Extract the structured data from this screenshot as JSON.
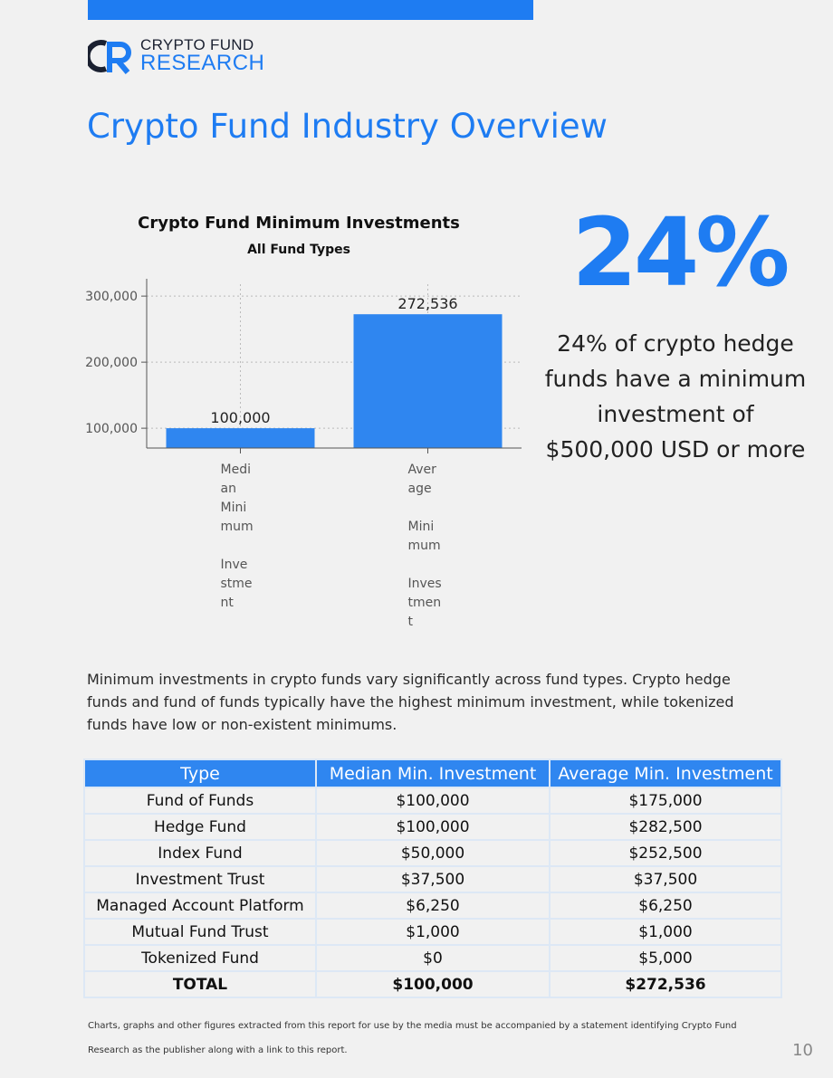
{
  "brand": {
    "mark": "CFR",
    "line1": "CRYPTO FUND",
    "line2": "RESEARCH"
  },
  "page_title": "Crypto Fund Industry Overview",
  "chart_data": {
    "type": "bar",
    "title": "Crypto Fund Minimum Investments",
    "subtitle": "All Fund Types",
    "categories": [
      "Median Minimum Investment",
      "Average Minimum Investment"
    ],
    "category_labels": [
      [
        "Medi",
        "an",
        "Mini",
        "mum",
        "",
        "Inve",
        "stme",
        "nt"
      ],
      [
        "Aver",
        "age",
        "",
        "Mini",
        "mum",
        "",
        "Inves",
        "tmen",
        "t"
      ]
    ],
    "values": [
      100000,
      272536
    ],
    "value_labels": [
      "100,000",
      "272,536"
    ],
    "yticks": [
      100000,
      200000,
      300000
    ],
    "ytick_labels": [
      "100,000",
      "200,000",
      "300,000"
    ],
    "ylim": [
      70000,
      318000
    ],
    "grid": true,
    "bar_color": "#2f86f0"
  },
  "highlight": {
    "stat": "24%",
    "description": "24% of crypto hedge funds have a minimum investment of $500,000 USD or more"
  },
  "intro": "Minimum investments in crypto funds vary significantly across fund types. Crypto hedge funds and fund of funds typically have the highest minimum investment, while tokenized funds have low or non-existent minimums.",
  "table": {
    "headers": [
      "Type",
      "Median Min. Investment",
      "Average Min. Investment"
    ],
    "rows": [
      [
        "Fund of Funds",
        "$100,000",
        "$175,000"
      ],
      [
        "Hedge Fund",
        "$100,000",
        "$282,500"
      ],
      [
        "Index Fund",
        "$50,000",
        "$252,500"
      ],
      [
        "Investment Trust",
        "$37,500",
        "$37,500"
      ],
      [
        "Managed Account Platform",
        "$6,250",
        "$6,250"
      ],
      [
        "Mutual Fund Trust",
        "$1,000",
        "$1,000"
      ],
      [
        "Tokenized Fund",
        "$0",
        "$5,000"
      ]
    ],
    "total": [
      "TOTAL",
      "$100,000",
      "$272,536"
    ]
  },
  "footnote": "Charts, graphs and other figures extracted from this report for use by the media must be accompanied by a statement identifying Crypto Fund Research as the publisher along with a link to this report.",
  "page_number": "10",
  "colors": {
    "accent": "#1e7cf2",
    "table_header": "#2f86f0",
    "background": "#f1f1f1"
  }
}
